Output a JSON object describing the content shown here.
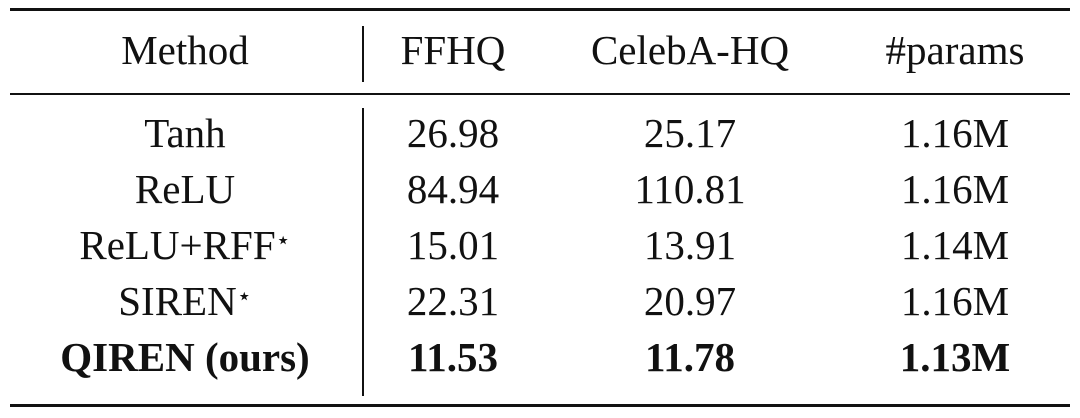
{
  "table": {
    "columns": [
      "Method",
      "FFHQ",
      "CelebA-HQ",
      "#params"
    ],
    "rows": [
      {
        "method": "Tanh",
        "values": [
          "26.98",
          "25.17",
          "1.16M"
        ]
      },
      {
        "method": "ReLU",
        "values": [
          "84.94",
          "110.81",
          "1.16M"
        ]
      },
      {
        "method": "ReLU+RFF",
        "marker": "⋆",
        "values": [
          "15.01",
          "13.91",
          "1.14M"
        ]
      },
      {
        "method": "SIREN",
        "marker": "⋆",
        "values": [
          "22.31",
          "20.97",
          "1.16M"
        ]
      },
      {
        "method": "QIREN (ours)",
        "values": [
          "11.53",
          "11.78",
          "1.13M"
        ]
      }
    ]
  }
}
